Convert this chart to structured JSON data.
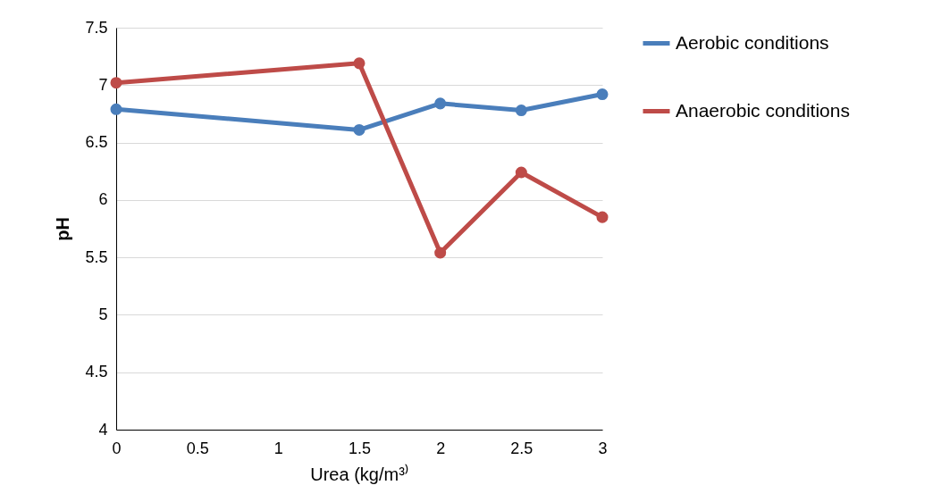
{
  "chart_data": {
    "type": "line",
    "xlabel": "Urea (kg/m³⁾",
    "ylabel": "pH",
    "x": [
      0,
      1.5,
      2,
      2.5,
      3
    ],
    "series": [
      {
        "name": "Aerobic conditions",
        "color": "#4a7ebb",
        "values": [
          6.79,
          6.61,
          6.84,
          6.78,
          6.92
        ]
      },
      {
        "name": "Anaerobic conditions",
        "color": "#be4b48",
        "values": [
          7.02,
          7.19,
          5.54,
          6.24,
          5.85
        ]
      }
    ],
    "xlim": [
      0,
      3
    ],
    "xticks": [
      0,
      0.5,
      1,
      1.5,
      2,
      2.5,
      3
    ],
    "ylim": [
      4,
      7.5
    ],
    "yticks": [
      4,
      4.5,
      5,
      5.5,
      6,
      6.5,
      7,
      7.5
    ],
    "grid": "y",
    "legend": "right",
    "marker": "circle",
    "line_style": "solid"
  }
}
